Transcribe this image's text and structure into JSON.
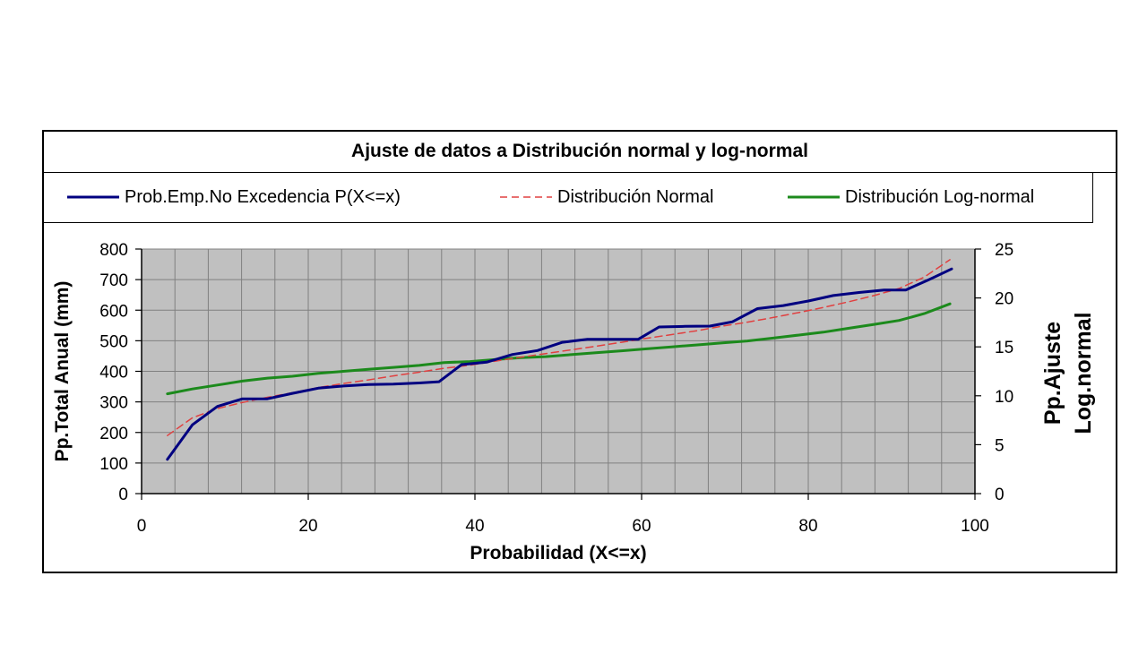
{
  "chart_data": {
    "type": "line",
    "title": "Ajuste de datos a Distribución normal y log-normal",
    "xlabel": "Probabilidad (X<=x)",
    "ylabel": "Pp.Total Anual (mm)",
    "y2label_line1": "Pp.Ajuste",
    "y2label_line2": "Log.normal",
    "xlim": [
      0,
      100
    ],
    "ylim": [
      0,
      800
    ],
    "y2lim": [
      0,
      25
    ],
    "xticks": [
      "0",
      "20",
      "40",
      "60",
      "80",
      "100"
    ],
    "yticks": [
      "0",
      "100",
      "200",
      "300",
      "400",
      "500",
      "600",
      "700",
      "800"
    ],
    "y2ticks": [
      "0",
      "5",
      "10",
      "15",
      "20",
      "25"
    ],
    "grid": true,
    "legend_position": "top",
    "plot_background": "#c0c0c0",
    "series": [
      {
        "name": "Prob.Emp.No Excedencia P(X<=x)",
        "color": "#000080",
        "style": "solid",
        "axis": "left",
        "points": [
          [
            3.1,
            112
          ],
          [
            6.1,
            225
          ],
          [
            9.1,
            285
          ],
          [
            12.1,
            310
          ],
          [
            15.1,
            310
          ],
          [
            18.1,
            328
          ],
          [
            21.2,
            345
          ],
          [
            24.2,
            352
          ],
          [
            27.2,
            357
          ],
          [
            30.2,
            358
          ],
          [
            33.3,
            362
          ],
          [
            35.7,
            366
          ],
          [
            38.4,
            422
          ],
          [
            41.4,
            430
          ],
          [
            44.5,
            455
          ],
          [
            47.5,
            468
          ],
          [
            50.5,
            495
          ],
          [
            53.5,
            505
          ],
          [
            56.6,
            505
          ],
          [
            59.6,
            505
          ],
          [
            62.1,
            545
          ],
          [
            65.2,
            547
          ],
          [
            68.2,
            548
          ],
          [
            70.9,
            562
          ],
          [
            73.9,
            605
          ],
          [
            77.0,
            615
          ],
          [
            80.0,
            630
          ],
          [
            83.0,
            648
          ],
          [
            86.1,
            658
          ],
          [
            89.1,
            666
          ],
          [
            91.7,
            666
          ],
          [
            94.5,
            700
          ],
          [
            97.2,
            735
          ]
        ]
      },
      {
        "name": "Distribución Normal",
        "color": "#e04040",
        "style": "dashed",
        "axis": "left",
        "points": [
          [
            3.1,
            190
          ],
          [
            6.1,
            248
          ],
          [
            9.1,
            278
          ],
          [
            12.1,
            298
          ],
          [
            15.1,
            315
          ],
          [
            18.1,
            330
          ],
          [
            21.2,
            347
          ],
          [
            24.2,
            360
          ],
          [
            27.2,
            372
          ],
          [
            30.2,
            385
          ],
          [
            33.3,
            397
          ],
          [
            36.3,
            410
          ],
          [
            39.4,
            420
          ],
          [
            42.4,
            433
          ],
          [
            45.5,
            446
          ],
          [
            48.5,
            458
          ],
          [
            51.5,
            470
          ],
          [
            54.5,
            482
          ],
          [
            57.6,
            495
          ],
          [
            60.6,
            508
          ],
          [
            63.6,
            520
          ],
          [
            66.7,
            533
          ],
          [
            69.7,
            548
          ],
          [
            72.7,
            561
          ],
          [
            75.8,
            576
          ],
          [
            78.8,
            592
          ],
          [
            81.8,
            609
          ],
          [
            84.8,
            627
          ],
          [
            87.9,
            648
          ],
          [
            90.9,
            671
          ],
          [
            93.9,
            708
          ],
          [
            97.0,
            765
          ]
        ]
      },
      {
        "name": "Distribución Log-normal",
        "color": "#1c8a1c",
        "style": "solid",
        "axis": "right",
        "points": [
          [
            3.1,
            10.2
          ],
          [
            6.1,
            10.7
          ],
          [
            9.1,
            11.1
          ],
          [
            12.1,
            11.5
          ],
          [
            15.1,
            11.8
          ],
          [
            18.1,
            12.0
          ],
          [
            21.2,
            12.3
          ],
          [
            24.2,
            12.5
          ],
          [
            27.2,
            12.7
          ],
          [
            30.2,
            12.9
          ],
          [
            33.3,
            13.1
          ],
          [
            36.3,
            13.4
          ],
          [
            39.4,
            13.5
          ],
          [
            42.4,
            13.7
          ],
          [
            45.5,
            13.9
          ],
          [
            48.5,
            14.0
          ],
          [
            51.5,
            14.2
          ],
          [
            54.5,
            14.4
          ],
          [
            57.6,
            14.6
          ],
          [
            60.6,
            14.8
          ],
          [
            63.6,
            15.0
          ],
          [
            66.7,
            15.2
          ],
          [
            69.7,
            15.4
          ],
          [
            72.7,
            15.6
          ],
          [
            75.8,
            15.9
          ],
          [
            78.8,
            16.2
          ],
          [
            81.8,
            16.5
          ],
          [
            84.8,
            16.9
          ],
          [
            87.9,
            17.3
          ],
          [
            90.9,
            17.7
          ],
          [
            93.9,
            18.4
          ],
          [
            97.0,
            19.4
          ]
        ]
      }
    ]
  }
}
